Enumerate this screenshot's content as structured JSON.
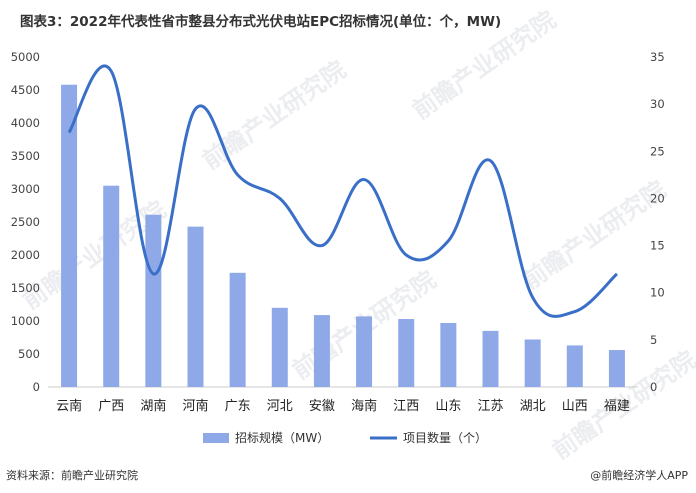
{
  "title": "图表3：2022年代表性省市整县分布式光伏电站EPC招标情况(单位：个，MW)",
  "source": "资料来源：前瞻产业研究院",
  "brand": "@前瞻经济学人APP",
  "watermark": "前瞻产业研究院",
  "colors": {
    "bar": "#8fa9e8",
    "line": "#3a6fc8",
    "axis": "#cccccc"
  },
  "chart_data": {
    "type": "bar",
    "categories": [
      "云南",
      "广西",
      "湖南",
      "河南",
      "广东",
      "河北",
      "安徽",
      "海南",
      "江西",
      "山东",
      "江苏",
      "湖北",
      "山西",
      "福建"
    ],
    "series": [
      {
        "name": "招标规模（MW）",
        "type": "bar",
        "axis": "left",
        "values": [
          4580,
          3050,
          2610,
          2430,
          1730,
          1200,
          1090,
          1070,
          1030,
          970,
          850,
          720,
          630,
          560
        ]
      },
      {
        "name": "项目数量（个）",
        "type": "line",
        "axis": "right",
        "smooth": true,
        "values": [
          27,
          33.5,
          12,
          29.5,
          22.5,
          20,
          15,
          22,
          14,
          15.5,
          24,
          9.5,
          8,
          12
        ]
      }
    ],
    "ylim_left": [
      0,
      5000
    ],
    "yticks_left": [
      0,
      500,
      1000,
      1500,
      2000,
      2500,
      3000,
      3500,
      4000,
      4500,
      5000
    ],
    "ylim_right": [
      0,
      35
    ],
    "yticks_right": [
      0,
      5,
      10,
      15,
      20,
      25,
      30,
      35
    ],
    "legend_position": "bottom",
    "grid": false
  }
}
